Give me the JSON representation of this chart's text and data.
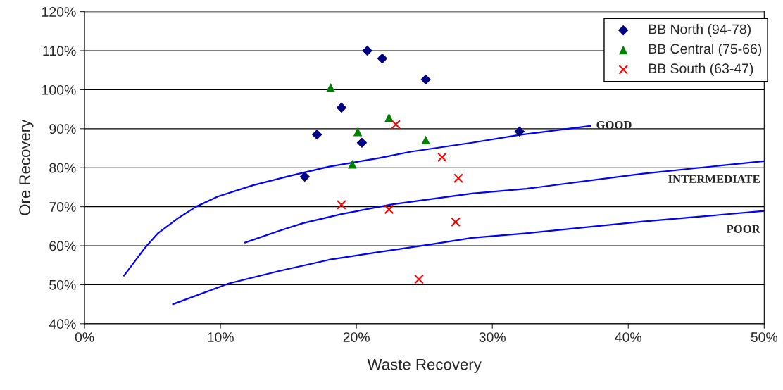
{
  "chart_data": {
    "type": "scatter",
    "xlabel": "Waste Recovery",
    "ylabel": "Ore Recovery",
    "xlim": [
      0,
      50
    ],
    "ylim": [
      40,
      120
    ],
    "xticks": [
      {
        "value": 0,
        "label": "0%"
      },
      {
        "value": 10,
        "label": "10%"
      },
      {
        "value": 20,
        "label": "20%"
      },
      {
        "value": 30,
        "label": "30%"
      },
      {
        "value": 40,
        "label": "40%"
      },
      {
        "value": 50,
        "label": "50%"
      }
    ],
    "yticks": [
      {
        "value": 40,
        "label": "40%"
      },
      {
        "value": 50,
        "label": "50%"
      },
      {
        "value": 60,
        "label": "60%"
      },
      {
        "value": 70,
        "label": "70%"
      },
      {
        "value": 80,
        "label": "80%"
      },
      {
        "value": 90,
        "label": "90%"
      },
      {
        "value": 100,
        "label": "100%"
      },
      {
        "value": 110,
        "label": "110%"
      },
      {
        "value": 120,
        "label": "120%"
      }
    ],
    "grid": "y",
    "legend": "top right",
    "series": [
      {
        "name": "BB North (94-78)",
        "color": "#000080",
        "marker": "diamond",
        "x": [
          20.8,
          21.9,
          25.1,
          18.9,
          17.1,
          20.4,
          16.2,
          32.0
        ],
        "values": [
          110,
          108,
          102.6,
          95.4,
          88.5,
          86.4,
          77.7,
          89.3
        ]
      },
      {
        "name": "BB Central (75-66)",
        "color": "#008000",
        "marker": "triangle",
        "x": [
          18.1,
          22.4,
          20.1,
          25.1,
          19.7
        ],
        "values": [
          100.6,
          92.9,
          89.2,
          87.1,
          80.9
        ]
      },
      {
        "name": "BB South (63-47)",
        "color": "#ff0000",
        "marker": "cross",
        "x": [
          22.9,
          26.3,
          27.5,
          18.9,
          22.4,
          27.3,
          24.6
        ],
        "values": [
          91.1,
          82.7,
          77.3,
          70.5,
          69.3,
          66.1,
          51.4
        ]
      },
      {
        "name": "GOOD",
        "type": "line",
        "color": "#0000ff",
        "marker": "none",
        "x": [
          2.9,
          4.5,
          5.4,
          6.9,
          8.2,
          9.8,
          12.4,
          15.2,
          18.0,
          21.7,
          24.0,
          28.5,
          32.0,
          37.2
        ],
        "values": [
          52.3,
          59.7,
          63.2,
          67.1,
          70.0,
          72.6,
          75.5,
          78.0,
          80.3,
          82.5,
          84.1,
          86.4,
          88.4,
          90.7
        ]
      },
      {
        "name": "INTERMEDIATE",
        "type": "line",
        "color": "#0000ff",
        "marker": "none",
        "x": [
          11.8,
          14.3,
          16.1,
          18.9,
          22.6,
          28.5,
          32.5,
          41.1,
          50.0
        ],
        "values": [
          60.8,
          63.8,
          65.8,
          68.1,
          70.6,
          73.4,
          74.6,
          78.5,
          81.7
        ]
      },
      {
        "name": "POOR",
        "type": "line",
        "color": "#0000ff",
        "marker": "none",
        "x": [
          6.5,
          10.6,
          14.3,
          18.0,
          21.7,
          25.4,
          28.5,
          32.5,
          41.1,
          50.0
        ],
        "values": [
          45.0,
          50.3,
          53.5,
          56.4,
          58.4,
          60.3,
          62.0,
          63.2,
          66.2,
          68.9
        ]
      }
    ]
  }
}
